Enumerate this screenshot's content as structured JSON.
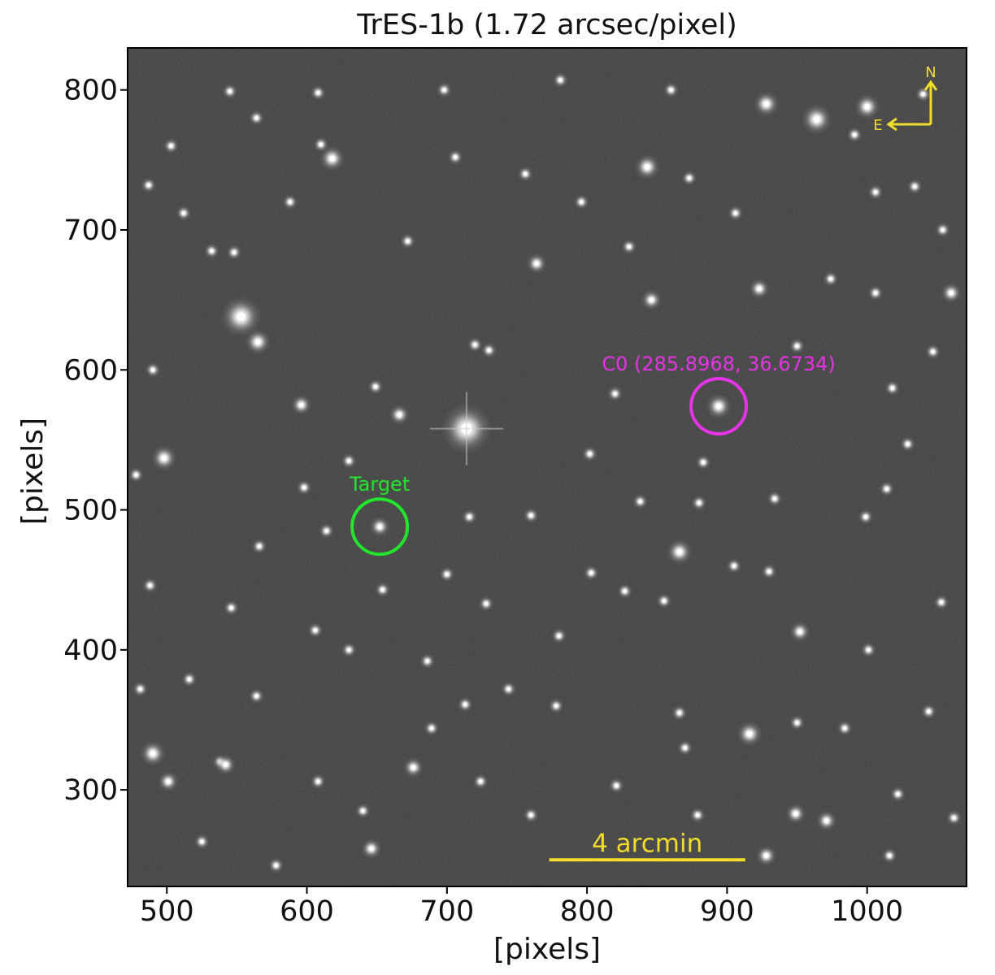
{
  "title": "TrES-1b  (1.72 arcsec/pixel)",
  "x_axis": {
    "label": "[pixels]",
    "range": [
      472,
      1071
    ],
    "ticks": [
      500,
      600,
      700,
      800,
      900,
      1000
    ],
    "tick_labels": [
      "500",
      "600",
      "700",
      "800",
      "900",
      "1000"
    ]
  },
  "y_axis": {
    "label": "[pixels]",
    "range": [
      231,
      830
    ],
    "ticks": [
      300,
      400,
      500,
      600,
      700,
      800
    ],
    "tick_labels": [
      "300",
      "400",
      "500",
      "600",
      "700",
      "800"
    ]
  },
  "target": {
    "label": "Target",
    "x": 652,
    "y": 488,
    "color": "#22e62b"
  },
  "comparison": {
    "label": "C0 (285.8968, 36.6734)",
    "x": 894,
    "y": 574,
    "color": "#e633e6"
  },
  "scale_bar": {
    "label": "4 arcmin",
    "x_start": 773,
    "x_end": 913,
    "y": 250,
    "color": "#f2de2a"
  },
  "compass": {
    "north_label": "N",
    "east_label": "E",
    "color": "#f2de2a"
  },
  "image": {
    "background": "#1c1c1c",
    "stars": [
      [
        553,
        638,
        8
      ],
      [
        565,
        620,
        5
      ],
      [
        714,
        558,
        10
      ],
      [
        652,
        488,
        4
      ],
      [
        894,
        574,
        5
      ],
      [
        964,
        779,
        6
      ],
      [
        1000,
        788,
        5
      ],
      [
        928,
        790,
        5
      ],
      [
        843,
        745,
        5
      ],
      [
        618,
        751,
        5
      ],
      [
        610,
        761,
        3
      ],
      [
        764,
        676,
        4
      ],
      [
        923,
        658,
        4
      ],
      [
        846,
        650,
        4
      ],
      [
        830,
        688,
        3
      ],
      [
        666,
        568,
        4
      ],
      [
        649,
        588,
        3
      ],
      [
        596,
        575,
        4
      ],
      [
        498,
        537,
        5
      ],
      [
        490,
        600,
        3
      ],
      [
        478,
        525,
        3
      ],
      [
        532,
        685,
        3
      ],
      [
        548,
        684,
        3
      ],
      [
        564,
        780,
        3
      ],
      [
        866,
        470,
        5
      ],
      [
        838,
        506,
        3
      ],
      [
        934,
        508,
        3
      ],
      [
        827,
        442,
        3
      ],
      [
        855,
        435,
        3
      ],
      [
        952,
        413,
        4
      ],
      [
        930,
        456,
        3
      ],
      [
        999,
        495,
        3
      ],
      [
        916,
        340,
        5
      ],
      [
        870,
        330,
        3
      ],
      [
        866,
        355,
        3
      ],
      [
        778,
        360,
        3
      ],
      [
        689,
        344,
        3
      ],
      [
        676,
        316,
        4
      ],
      [
        490,
        326,
        5
      ],
      [
        501,
        306,
        4
      ],
      [
        538,
        320,
        3
      ],
      [
        542,
        318,
        4
      ],
      [
        949,
        283,
        4
      ],
      [
        971,
        278,
        4
      ],
      [
        928,
        253,
        4
      ],
      [
        646,
        258,
        4
      ],
      [
        578,
        246,
        3
      ],
      [
        1060,
        655,
        4
      ],
      [
        1053,
        434,
        3
      ],
      [
        1014,
        515,
        3
      ],
      [
        1001,
        400,
        3
      ],
      [
        1029,
        547,
        3
      ],
      [
        730,
        614,
        3
      ],
      [
        716,
        495,
        3
      ],
      [
        654,
        443,
        3
      ],
      [
        700,
        454,
        3
      ],
      [
        720,
        618,
        3
      ],
      [
        880,
        505,
        3
      ],
      [
        905,
        460,
        3
      ],
      [
        803,
        455,
        3
      ],
      [
        780,
        410,
        3
      ],
      [
        744,
        372,
        3
      ],
      [
        728,
        433,
        3
      ],
      [
        713,
        361,
        3
      ],
      [
        606,
        414,
        3
      ],
      [
        630,
        400,
        3
      ],
      [
        564,
        367,
        3
      ],
      [
        614,
        485,
        3
      ],
      [
        598,
        516,
        3
      ],
      [
        630,
        535,
        3
      ],
      [
        820,
        583,
        3
      ],
      [
        883,
        534,
        3
      ],
      [
        950,
        617,
        3
      ],
      [
        1006,
        727,
        3
      ],
      [
        1034,
        731,
        3
      ],
      [
        1054,
        700,
        3
      ],
      [
        991,
        768,
        3
      ],
      [
        906,
        712,
        3
      ],
      [
        873,
        737,
        3
      ],
      [
        796,
        720,
        3
      ],
      [
        756,
        740,
        3
      ],
      [
        706,
        752,
        3
      ],
      [
        672,
        692,
        3
      ],
      [
        588,
        720,
        3
      ],
      [
        512,
        712,
        3
      ],
      [
        503,
        760,
        3
      ],
      [
        487,
        732,
        3
      ],
      [
        545,
        799,
        3
      ],
      [
        608,
        798,
        3
      ],
      [
        698,
        800,
        3
      ],
      [
        781,
        807,
        3
      ],
      [
        860,
        800,
        3
      ],
      [
        1040,
        797,
        3
      ],
      [
        950,
        348,
        3
      ],
      [
        984,
        344,
        3
      ],
      [
        1022,
        297,
        3
      ],
      [
        1044,
        356,
        3
      ],
      [
        879,
        282,
        3
      ],
      [
        821,
        303,
        3
      ],
      [
        760,
        282,
        3
      ],
      [
        724,
        306,
        3
      ],
      [
        640,
        285,
        3
      ],
      [
        608,
        306,
        3
      ],
      [
        525,
        263,
        3
      ],
      [
        516,
        379,
        3
      ],
      [
        481,
        372,
        3
      ],
      [
        488,
        446,
        3
      ],
      [
        566,
        474,
        3
      ],
      [
        546,
        430,
        3
      ],
      [
        686,
        392,
        3
      ],
      [
        760,
        496,
        3
      ],
      [
        802,
        540,
        3
      ],
      [
        1018,
        587,
        3
      ],
      [
        1047,
        613,
        3
      ],
      [
        1006,
        655,
        3
      ],
      [
        974,
        665,
        3
      ],
      [
        1062,
        280,
        3
      ],
      [
        1016,
        253,
        3
      ]
    ]
  }
}
